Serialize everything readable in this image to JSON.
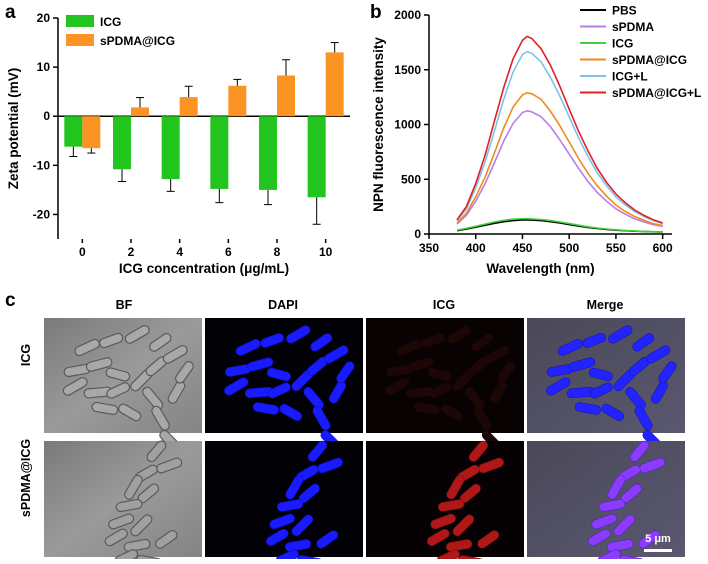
{
  "panels": {
    "a": "a",
    "b": "b",
    "c": "c"
  },
  "chart_data": [
    {
      "type": "bar",
      "panel": "a",
      "ylabel": "Zeta potential (mV)",
      "xlabel": "ICG concentration (μg/mL)",
      "categories": [
        "0",
        "2",
        "4",
        "6",
        "8",
        "10"
      ],
      "ylim": [
        -25,
        20
      ],
      "yticks": [
        "20",
        "10",
        "0",
        "-10",
        "-20"
      ],
      "series": [
        {
          "name": "ICG",
          "color": "#22c41e",
          "values": [
            -6.2,
            -10.8,
            -12.8,
            -14.8,
            -15.0,
            -16.5
          ],
          "errors": [
            2.0,
            2.5,
            2.5,
            2.8,
            3.0,
            5.5
          ]
        },
        {
          "name": "sPDMA@ICG",
          "color": "#fb9423",
          "values": [
            -6.5,
            1.8,
            3.9,
            6.2,
            8.3,
            13.0
          ],
          "errors": [
            1.0,
            2.0,
            2.2,
            1.3,
            3.2,
            2.0
          ]
        }
      ],
      "legend": "top-left"
    },
    {
      "type": "line",
      "panel": "b",
      "ylabel": "NPN fluorescence intensity",
      "xlabel": "Wavelength (nm)",
      "xlim": [
        350,
        610
      ],
      "ylim": [
        0,
        2000
      ],
      "xticks": [
        "350",
        "400",
        "450",
        "500",
        "550",
        "600"
      ],
      "yticks": [
        "2000",
        "1500",
        "1000",
        "500",
        "0"
      ],
      "x": [
        380,
        390,
        400,
        410,
        420,
        430,
        440,
        450,
        455,
        460,
        470,
        480,
        490,
        500,
        510,
        520,
        530,
        540,
        550,
        560,
        570,
        580,
        590,
        600
      ],
      "series": [
        {
          "name": "PBS",
          "color": "#000000",
          "values": [
            30,
            45,
            62,
            80,
            98,
            112,
            122,
            128,
            128,
            127,
            122,
            112,
            100,
            86,
            72,
            60,
            50,
            42,
            35,
            30,
            26,
            23,
            20,
            18
          ]
        },
        {
          "name": "sPDMA",
          "color": "#b77fe6",
          "values": [
            90,
            170,
            300,
            460,
            650,
            850,
            1010,
            1110,
            1125,
            1115,
            1070,
            980,
            860,
            730,
            600,
            480,
            380,
            300,
            230,
            180,
            140,
            110,
            85,
            70
          ]
        },
        {
          "name": "ICG",
          "color": "#3fd13a",
          "values": [
            35,
            52,
            70,
            90,
            110,
            125,
            135,
            140,
            140,
            138,
            132,
            122,
            110,
            95,
            80,
            66,
            55,
            46,
            38,
            32,
            27,
            24,
            21,
            19
          ]
        },
        {
          "name": "sPDMA@ICG",
          "color": "#f08a1c",
          "values": [
            100,
            190,
            340,
            520,
            740,
            970,
            1160,
            1270,
            1290,
            1280,
            1230,
            1120,
            990,
            840,
            690,
            555,
            440,
            345,
            265,
            205,
            160,
            125,
            95,
            78
          ]
        },
        {
          "name": "ICG+L",
          "color": "#7cc3ec",
          "values": [
            120,
            230,
            420,
            660,
            940,
            1230,
            1480,
            1640,
            1665,
            1650,
            1570,
            1430,
            1260,
            1070,
            880,
            710,
            560,
            440,
            340,
            265,
            205,
            160,
            122,
            95
          ]
        },
        {
          "name": "sPDMA@ICG+L",
          "color": "#e31f26",
          "values": [
            130,
            250,
            460,
            720,
            1030,
            1340,
            1600,
            1770,
            1805,
            1785,
            1690,
            1540,
            1350,
            1140,
            940,
            760,
            600,
            470,
            365,
            285,
            220,
            170,
            130,
            100
          ]
        }
      ],
      "legend": "top-right"
    }
  ],
  "microscopy": {
    "columns": [
      "BF",
      "DAPI",
      "ICG",
      "Merge"
    ],
    "rows": [
      "ICG",
      "sPDMA@ICG"
    ],
    "scalebar_label": "5 μm",
    "colors": {
      "bf": "#8a8a8a",
      "dapi": "#1a1aff",
      "icg": "#b01818",
      "merge_blue": "#2323ff",
      "merge_purple": "#8a3cff"
    }
  }
}
